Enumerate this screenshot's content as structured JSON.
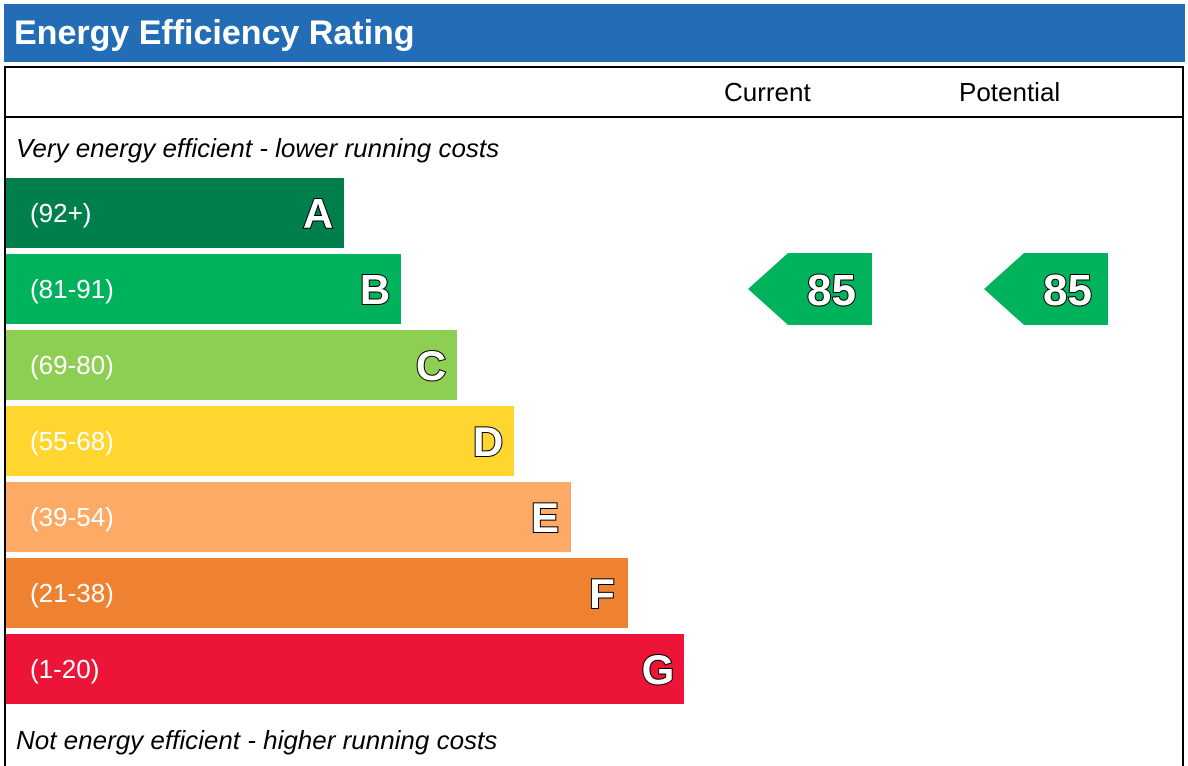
{
  "header": {
    "title": "Energy Efficiency Rating"
  },
  "columns": {
    "current": "Current",
    "potential": "Potential"
  },
  "captions": {
    "top": "Very energy efficient - lower running costs",
    "bottom": "Not energy efficient - higher running costs"
  },
  "colors": {
    "header": "#226db5",
    "A": "#007f4d",
    "B": "#00b25b",
    "C": "#8dcf52",
    "D": "#ffd630",
    "E": "#fcaa65",
    "F": "#ef8230",
    "G": "#ec1537"
  },
  "chart_data": {
    "type": "bar",
    "categories": [
      "A",
      "B",
      "C",
      "D",
      "E",
      "F",
      "G"
    ],
    "bands": [
      {
        "letter": "A",
        "range": "(92+)",
        "min": 92,
        "max": null
      },
      {
        "letter": "B",
        "range": "(81-91)",
        "min": 81,
        "max": 91
      },
      {
        "letter": "C",
        "range": "(69-80)",
        "min": 69,
        "max": 80
      },
      {
        "letter": "D",
        "range": "(55-68)",
        "min": 55,
        "max": 68
      },
      {
        "letter": "E",
        "range": "(39-54)",
        "min": 39,
        "max": 54
      },
      {
        "letter": "F",
        "range": "(21-38)",
        "min": 21,
        "max": 38
      },
      {
        "letter": "G",
        "range": "(1-20)",
        "min": 1,
        "max": 20
      }
    ],
    "ratings": {
      "current": {
        "value": 85,
        "band": "B"
      },
      "potential": {
        "value": 85,
        "band": "B"
      }
    }
  }
}
